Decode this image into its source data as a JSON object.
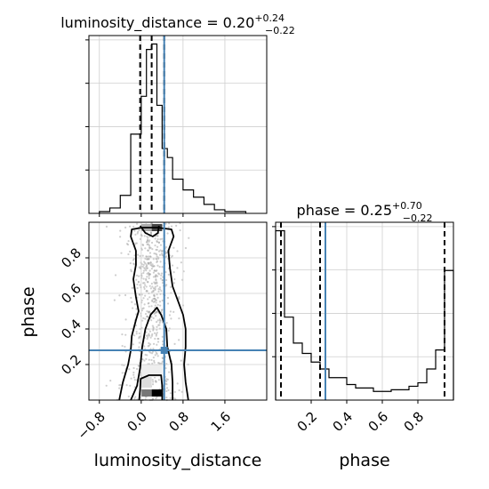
{
  "chart_data": [
    {
      "type": "histogram",
      "panel": "luminosity_distance marginal",
      "title": {
        "base": "luminosity_distance = 0.20",
        "sup": "+0.24",
        "sub": "−0.22"
      },
      "xlim": [
        -1.0,
        2.4
      ],
      "x_ticks": [
        -0.8,
        0.0,
        0.8,
        1.6
      ],
      "y_ticks_count": 4,
      "grid": true,
      "bins": [
        {
          "x0": -0.8,
          "x1": -0.6,
          "count": 1
        },
        {
          "x0": -0.6,
          "x1": -0.4,
          "count": 3
        },
        {
          "x0": -0.4,
          "x1": -0.2,
          "count": 10
        },
        {
          "x0": -0.2,
          "x1": 0.0,
          "count": 44
        },
        {
          "x0": 0.0,
          "x1": 0.1,
          "count": 65
        },
        {
          "x0": 0.1,
          "x1": 0.2,
          "count": 91
        },
        {
          "x0": 0.2,
          "x1": 0.3,
          "count": 94
        },
        {
          "x0": 0.3,
          "x1": 0.4,
          "count": 60
        },
        {
          "x0": 0.4,
          "x1": 0.5,
          "count": 36
        },
        {
          "x0": 0.5,
          "x1": 0.6,
          "count": 31
        },
        {
          "x0": 0.6,
          "x1": 0.8,
          "count": 19
        },
        {
          "x0": 0.8,
          "x1": 1.0,
          "count": 13
        },
        {
          "x0": 1.0,
          "x1": 1.2,
          "count": 9
        },
        {
          "x0": 1.2,
          "x1": 1.4,
          "count": 5
        },
        {
          "x0": 1.4,
          "x1": 1.6,
          "count": 2
        },
        {
          "x0": 1.6,
          "x1": 2.0,
          "count": 1
        }
      ],
      "quantiles": [
        -0.02,
        0.2,
        0.44
      ],
      "truth": 0.44,
      "truth_color": "#4682b4"
    },
    {
      "type": "histogram",
      "panel": "phase marginal",
      "title": {
        "base": "phase = 0.25",
        "sup": "+0.70",
        "sub": "−0.22"
      },
      "xlim": [
        0.0,
        1.0
      ],
      "x_ticks": [
        0.2,
        0.4,
        0.6,
        0.8
      ],
      "xlabel": "phase",
      "y_ticks_count": 4,
      "grid": true,
      "bins": [
        {
          "x0": 0.0,
          "x1": 0.05,
          "count": 98
        },
        {
          "x0": 0.05,
          "x1": 0.1,
          "count": 48
        },
        {
          "x0": 0.1,
          "x1": 0.15,
          "count": 33
        },
        {
          "x0": 0.15,
          "x1": 0.2,
          "count": 27
        },
        {
          "x0": 0.2,
          "x1": 0.25,
          "count": 22
        },
        {
          "x0": 0.25,
          "x1": 0.3,
          "count": 18
        },
        {
          "x0": 0.3,
          "x1": 0.4,
          "count": 13
        },
        {
          "x0": 0.4,
          "x1": 0.45,
          "count": 9
        },
        {
          "x0": 0.45,
          "x1": 0.55,
          "count": 7
        },
        {
          "x0": 0.55,
          "x1": 0.65,
          "count": 5
        },
        {
          "x0": 0.65,
          "x1": 0.75,
          "count": 6
        },
        {
          "x0": 0.75,
          "x1": 0.8,
          "count": 8
        },
        {
          "x0": 0.8,
          "x1": 0.85,
          "count": 10
        },
        {
          "x0": 0.85,
          "x1": 0.9,
          "count": 18
        },
        {
          "x0": 0.9,
          "x1": 0.95,
          "count": 29
        },
        {
          "x0": 0.95,
          "x1": 1.0,
          "count": 75
        }
      ],
      "quantiles": [
        0.03,
        0.25,
        0.95
      ],
      "truth": 0.28,
      "truth_color": "#4682b4"
    },
    {
      "type": "scatter",
      "panel": "joint luminosity_distance vs phase",
      "xlabel": "luminosity_distance",
      "ylabel": "phase",
      "xlim": [
        -1.0,
        2.4
      ],
      "ylim": [
        0.0,
        1.0
      ],
      "x_ticks": [
        -0.8,
        0.0,
        0.8,
        1.6
      ],
      "y_ticks": [
        0.2,
        0.4,
        0.6,
        0.8
      ],
      "grid": true,
      "truth": {
        "x": 0.44,
        "y": 0.28
      },
      "truth_color": "#4682b4",
      "cells": [
        {
          "x": 0.2,
          "y": 0.02,
          "w": 0.2,
          "h": 0.04,
          "fill": "#000000"
        },
        {
          "x": 0.0,
          "y": 0.02,
          "w": 0.2,
          "h": 0.04,
          "fill": "#777777"
        },
        {
          "x": 0.0,
          "y": 0.07,
          "w": 0.2,
          "h": 0.06,
          "fill": "#dddddd"
        },
        {
          "x": 0.0,
          "y": 0.13,
          "w": 0.4,
          "h": 0.07,
          "fill": "#eeeeee"
        },
        {
          "x": 0.2,
          "y": 0.95,
          "w": 0.2,
          "h": 0.04,
          "fill": "#444444"
        },
        {
          "x": 0.0,
          "y": 0.95,
          "w": 0.2,
          "h": 0.04,
          "fill": "#aaaaaa"
        }
      ],
      "contours": [
        [
          [
            -0.42,
            0.0
          ],
          [
            -0.35,
            0.1
          ],
          [
            -0.25,
            0.2
          ],
          [
            -0.2,
            0.28
          ],
          [
            -0.18,
            0.36
          ],
          [
            -0.1,
            0.45
          ],
          [
            -0.05,
            0.5
          ],
          [
            -0.1,
            0.58
          ],
          [
            -0.15,
            0.68
          ],
          [
            -0.1,
            0.76
          ],
          [
            -0.1,
            0.84
          ],
          [
            -0.2,
            0.92
          ],
          [
            -0.18,
            0.96
          ],
          [
            0.02,
            0.97
          ],
          [
            0.32,
            0.97
          ],
          [
            0.58,
            0.96
          ],
          [
            0.62,
            0.92
          ],
          [
            0.52,
            0.84
          ],
          [
            0.55,
            0.74
          ],
          [
            0.6,
            0.64
          ],
          [
            0.7,
            0.56
          ],
          [
            0.8,
            0.48
          ],
          [
            0.85,
            0.4
          ],
          [
            0.85,
            0.3
          ],
          [
            0.82,
            0.2
          ],
          [
            0.85,
            0.1
          ],
          [
            0.9,
            0.0
          ]
        ],
        [
          [
            -0.2,
            0.0
          ],
          [
            -0.08,
            0.08
          ],
          [
            -0.02,
            0.18
          ],
          [
            0.02,
            0.3
          ],
          [
            0.08,
            0.4
          ],
          [
            0.18,
            0.48
          ],
          [
            0.3,
            0.52
          ],
          [
            0.38,
            0.48
          ],
          [
            0.48,
            0.4
          ],
          [
            0.5,
            0.3
          ],
          [
            0.58,
            0.2
          ],
          [
            0.6,
            0.1
          ],
          [
            0.6,
            0.0
          ]
        ],
        [
          [
            -0.02,
            0.98
          ],
          [
            0.08,
            0.94
          ],
          [
            0.22,
            0.92
          ],
          [
            0.32,
            0.94
          ],
          [
            0.34,
            0.98
          ]
        ],
        [
          [
            -0.04,
            0.0
          ],
          [
            -0.02,
            0.06
          ],
          [
            -0.01,
            0.12
          ],
          [
            0.15,
            0.14
          ],
          [
            0.38,
            0.14
          ],
          [
            0.4,
            0.08
          ],
          [
            0.4,
            0.0
          ]
        ]
      ],
      "points_note": "light-gray sample scatter surrounding the central band"
    }
  ]
}
